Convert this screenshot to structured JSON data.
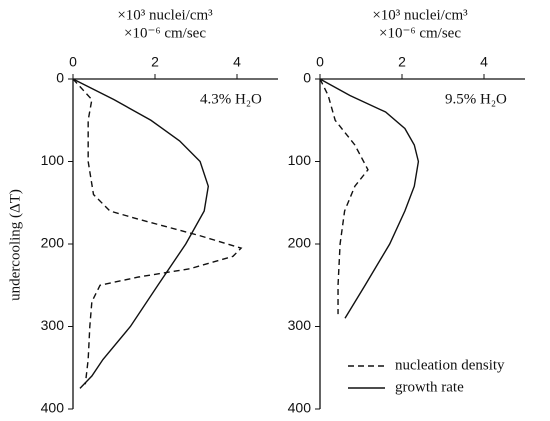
{
  "chart_data": [
    {
      "type": "line",
      "xlabel": [
        "×10³ nuclei/cm³",
        "×10⁻⁶ cm/sec"
      ],
      "ylabel": "undercooling (ΔT)",
      "annotation": "4.3% H₂O",
      "xlim": [
        0,
        5
      ],
      "xticks": [
        0,
        2,
        4
      ],
      "ylim": [
        0,
        400
      ],
      "yticks": [
        0,
        100,
        200,
        300,
        400
      ],
      "series": [
        {
          "color": "#111",
          "dash": true,
          "x": [
            0,
            0.46,
            0.37,
            0.37,
            0.5,
            0.9,
            1.6,
            3.1,
            4.1,
            3.9,
            2.85,
            1.6,
            0.66,
            0.46,
            0.41,
            0.37,
            0.3
          ],
          "y": [
            0,
            25,
            50,
            100,
            140,
            160,
            170,
            190,
            205,
            215,
            230,
            240,
            250,
            270,
            300,
            340,
            370
          ]
        },
        {
          "color": "#111",
          "dash": false,
          "x": [
            0,
            1.0,
            1.9,
            2.6,
            3.1,
            3.3,
            3.2,
            2.75,
            2.07,
            1.4,
            0.73,
            0.46,
            0.17
          ],
          "y": [
            0,
            25,
            50,
            75,
            100,
            130,
            160,
            200,
            250,
            300,
            340,
            360,
            375
          ]
        }
      ]
    },
    {
      "type": "line",
      "xlabel": [
        "×10³ nuclei/cm³",
        "×10⁻⁶ cm/sec"
      ],
      "annotation": "9.5% H₂O",
      "xlim": [
        0,
        5
      ],
      "xticks": [
        0,
        2,
        4
      ],
      "ylim": [
        0,
        400
      ],
      "yticks": [
        0,
        100,
        200,
        300,
        400
      ],
      "legend": "lower right",
      "series": [
        {
          "name": "nucleation density",
          "color": "#111",
          "dash": true,
          "x": [
            0,
            0.2,
            0.37,
            0.85,
            1.17,
            0.85,
            0.6,
            0.49,
            0.44,
            0.44
          ],
          "y": [
            0,
            20,
            50,
            80,
            110,
            130,
            160,
            200,
            250,
            285
          ]
        },
        {
          "name": "growth rate",
          "color": "#111",
          "dash": false,
          "x": [
            0,
            0.73,
            1.6,
            2.07,
            2.3,
            2.4,
            2.3,
            2.07,
            1.7,
            1.1,
            0.61
          ],
          "y": [
            0,
            20,
            40,
            60,
            80,
            100,
            130,
            160,
            200,
            250,
            290
          ]
        }
      ]
    }
  ]
}
